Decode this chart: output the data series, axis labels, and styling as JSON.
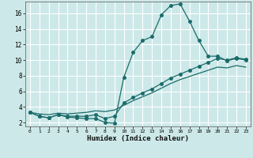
{
  "xlabel": "Humidex (Indice chaleur)",
  "bg_color": "#cde8e8",
  "grid_color": "#ffffff",
  "line_color": "#1a6b6b",
  "xlim": [
    -0.5,
    23.5
  ],
  "ylim": [
    1.5,
    17.5
  ],
  "xticks": [
    0,
    1,
    2,
    3,
    4,
    5,
    6,
    7,
    8,
    9,
    10,
    11,
    12,
    13,
    14,
    15,
    16,
    17,
    18,
    19,
    20,
    21,
    22,
    23
  ],
  "yticks": [
    2,
    4,
    6,
    8,
    10,
    12,
    14,
    16
  ],
  "series1_x": [
    0,
    1,
    2,
    3,
    4,
    5,
    6,
    7,
    8,
    9,
    10,
    11,
    12,
    13,
    14,
    15,
    16,
    17,
    18,
    19,
    20,
    21,
    22,
    23
  ],
  "series1_y": [
    3.3,
    2.8,
    2.6,
    3.0,
    2.7,
    2.6,
    2.5,
    2.5,
    2.0,
    1.9,
    7.8,
    11.0,
    12.5,
    13.0,
    15.8,
    17.0,
    17.2,
    15.0,
    12.5,
    10.5,
    10.5,
    9.9,
    10.2,
    10.0
  ],
  "series2_x": [
    0,
    1,
    2,
    3,
    4,
    5,
    6,
    7,
    8,
    9,
    10,
    11,
    12,
    13,
    14,
    15,
    16,
    17,
    18,
    19,
    20,
    21,
    22,
    23
  ],
  "series2_y": [
    3.3,
    2.8,
    2.6,
    3.0,
    2.8,
    2.8,
    2.8,
    3.0,
    2.5,
    2.8,
    4.5,
    5.2,
    5.8,
    6.3,
    7.0,
    7.7,
    8.2,
    8.7,
    9.2,
    9.7,
    10.2,
    10.0,
    10.3,
    10.1
  ],
  "series3_x": [
    0,
    1,
    2,
    3,
    4,
    5,
    6,
    7,
    8,
    9,
    10,
    11,
    12,
    13,
    14,
    15,
    16,
    17,
    18,
    19,
    20,
    21,
    22,
    23
  ],
  "series3_y": [
    3.3,
    3.1,
    3.0,
    3.2,
    3.1,
    3.2,
    3.3,
    3.5,
    3.4,
    3.6,
    4.2,
    4.8,
    5.3,
    5.8,
    6.4,
    7.0,
    7.5,
    7.9,
    8.3,
    8.7,
    9.1,
    9.0,
    9.3,
    9.1
  ]
}
